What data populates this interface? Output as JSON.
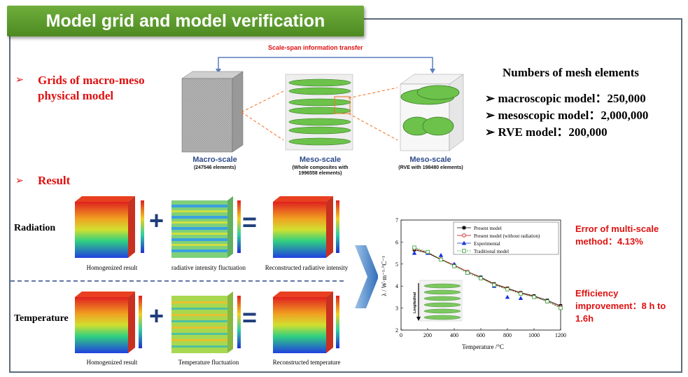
{
  "banner": {
    "title": "Model grid and model verification"
  },
  "grids": {
    "heading": "Grids of macro-meso physical model",
    "transfer_label": "Scale-span information transfer"
  },
  "scales": [
    {
      "title": "Macro-scale",
      "sub": "(247546 elements)"
    },
    {
      "title": "Meso-scale",
      "sub": "(Whole composites with 1996558 elements)"
    },
    {
      "title": "Meso-scale",
      "sub": "(RVE with 198480 elements)"
    }
  ],
  "mesh": {
    "title": "Numbers of mesh elements",
    "items": [
      "macroscopic model：250,000",
      "mesoscopic model：2,000,000",
      "RVE model：200,000"
    ]
  },
  "result": {
    "heading": "Result"
  },
  "rows": [
    {
      "label": "Radiation",
      "captions": [
        "Homogenized result",
        "radiative intensity fluctuation",
        "Reconstructed radiative intensity"
      ]
    },
    {
      "label": "Temperature",
      "captions": [
        "Homogenized result",
        "Temperature fluctuation",
        "Reconstructed temperature"
      ]
    }
  ],
  "operators": {
    "plus": "+",
    "equals": "="
  },
  "side_notes": {
    "error": "Error of multi-scale method：4.13%",
    "efficiency": "Efficiency improvement：8 h to 1.6h"
  },
  "chart_data": {
    "type": "line",
    "xlabel": "Temperature /°C",
    "ylabel": "λ / W·m⁻¹·°C⁻¹",
    "xlim": [
      0,
      1200
    ],
    "ylim": [
      2,
      7
    ],
    "xticks": [
      0,
      200,
      400,
      600,
      800,
      1000,
      1200
    ],
    "yticks": [
      2,
      3,
      4,
      5,
      6,
      7
    ],
    "inset_label": "Longitudinal",
    "legend_position": "top-right",
    "series": [
      {
        "name": "Present model",
        "color": "#000000",
        "marker": "square-filled",
        "x": [
          100,
          200,
          300,
          400,
          500,
          600,
          700,
          800,
          900,
          1000,
          1100,
          1200
        ],
        "y": [
          5.65,
          5.5,
          5.2,
          4.95,
          4.65,
          4.4,
          4.1,
          3.9,
          3.7,
          3.55,
          3.35,
          3.1
        ]
      },
      {
        "name": "Present model (without radiation)",
        "color": "#c00000",
        "marker": "circle-open",
        "x": [
          100,
          200,
          300,
          400,
          500,
          600,
          700,
          800,
          900,
          1000,
          1100,
          1200
        ],
        "y": [
          5.7,
          5.52,
          5.22,
          4.95,
          4.65,
          4.38,
          4.08,
          3.88,
          3.68,
          3.52,
          3.3,
          3.05
        ]
      },
      {
        "name": "Experimental",
        "color": "#1030e0",
        "marker": "triangle-filled",
        "x": [
          100,
          200,
          300,
          400,
          500,
          600,
          700,
          800,
          900
        ],
        "y": [
          5.5,
          5.5,
          5.4,
          5.0,
          4.6,
          4.4,
          4.0,
          3.5,
          3.45
        ]
      },
      {
        "name": "Traditional model",
        "color": "#2a9a2a",
        "marker": "square-open",
        "x": [
          100,
          200,
          300,
          400,
          500,
          600,
          700,
          800,
          900,
          1000,
          1100,
          1200
        ],
        "y": [
          5.75,
          5.55,
          5.2,
          4.9,
          4.6,
          4.35,
          4.05,
          3.85,
          3.65,
          3.5,
          3.3,
          3.0
        ]
      }
    ]
  }
}
